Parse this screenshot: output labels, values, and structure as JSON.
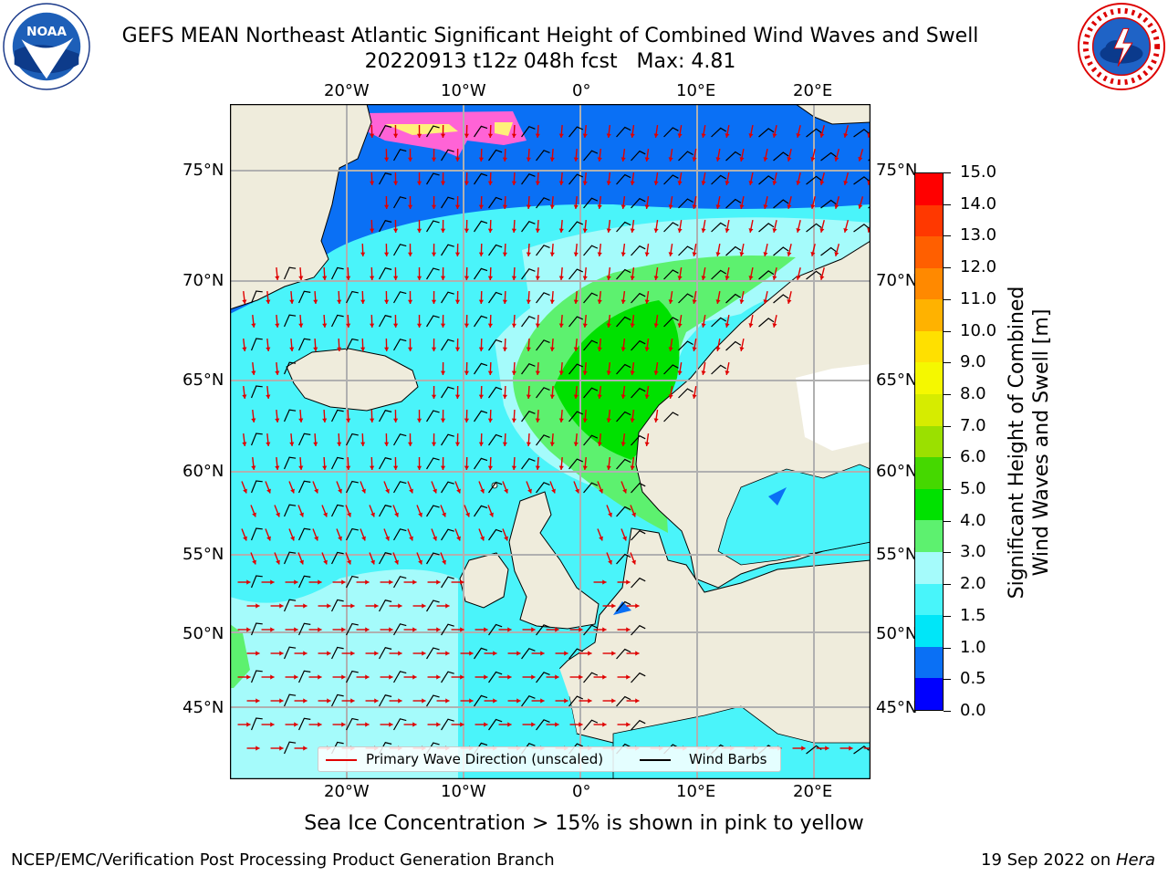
{
  "header": {
    "title": "GEFS MEAN Northeast Atlantic Significant Height of Combined Wind Waves and Swell",
    "subtitle": "20220913 t12z 048h fcst   Max: 4.81"
  },
  "map": {
    "lon_labels": [
      "20°W",
      "10°W",
      "0°",
      "10°E",
      "20°E"
    ],
    "lat_labels": [
      "75°N",
      "70°N",
      "65°N",
      "60°N",
      "55°N",
      "50°N",
      "45°N"
    ],
    "colors": {
      "land": "#efecdc",
      "grid": "#b0b0b0",
      "wave_arrow": "#e00000",
      "wind_barb": "#000000"
    }
  },
  "legend": {
    "wave_direction": "Primary Wave Direction (unscaled)",
    "wind_barbs": "Wind Barbs"
  },
  "colorbar": {
    "title_line1": "Significant Height of Combined",
    "title_line2": "Wind Waves and Swell [m]",
    "ticks": [
      "0.0",
      "0.5",
      "1.0",
      "1.5",
      "2.0",
      "3.0",
      "4.0",
      "5.0",
      "6.0",
      "7.0",
      "8.0",
      "9.0",
      "10.0",
      "11.0",
      "12.0",
      "13.0",
      "14.0",
      "15.0"
    ],
    "colors": [
      "#0000ff",
      "#0a70f5",
      "#00e6f8",
      "#48f5fa",
      "#a5fbfb",
      "#5df16f",
      "#00e100",
      "#45d800",
      "#9be000",
      "#d6ec00",
      "#f5f800",
      "#ffe000",
      "#ffb200",
      "#ff8900",
      "#ff5f00",
      "#ff3800",
      "#ff0000"
    ]
  },
  "notes": {
    "ice": "Sea Ice Concentration > 15% is shown in pink to yellow",
    "footer_left": "NCEP/EMC/Verification Post Processing Product Generation Branch",
    "footer_date": "19 Sep 2022 on ",
    "footer_host": "Hera"
  },
  "logos": {
    "noaa": "NOAA",
    "nws": "NATIONAL WEATHER SERVICE"
  }
}
